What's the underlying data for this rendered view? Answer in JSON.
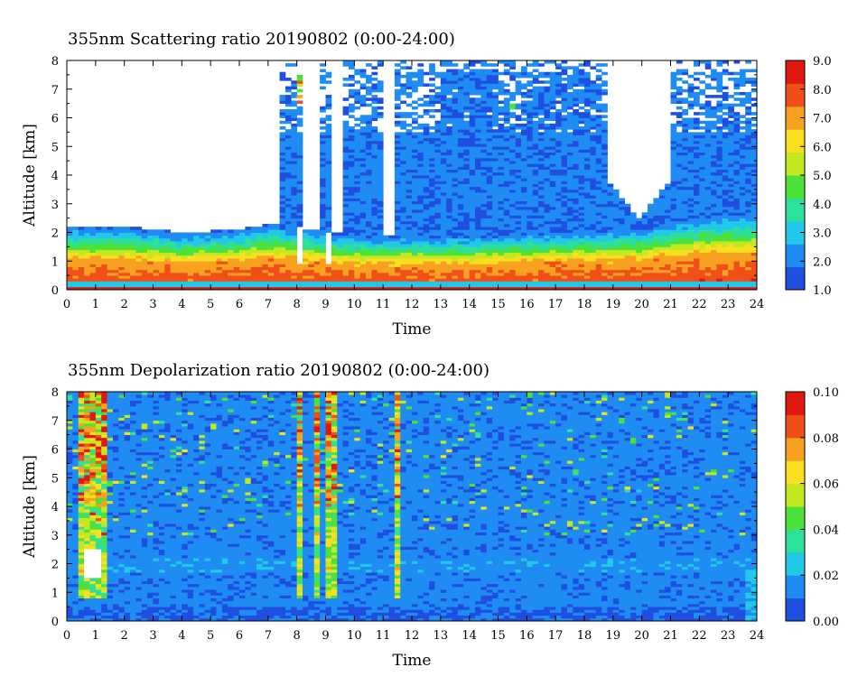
{
  "chart_data": [
    {
      "type": "heatmap",
      "title": "355nm Scattering ratio  20190802 (0:00-24:00)",
      "xlabel": "Time",
      "ylabel": "Altitude [km]",
      "xlim": [
        0,
        24
      ],
      "ylim": [
        0,
        8
      ],
      "x_ticks": [
        "0",
        "1",
        "2",
        "3",
        "4",
        "5",
        "6",
        "7",
        "8",
        "9",
        "10",
        "11",
        "12",
        "13",
        "14",
        "15",
        "16",
        "17",
        "18",
        "19",
        "20",
        "21",
        "22",
        "23",
        "24"
      ],
      "y_ticks": [
        "0",
        "1",
        "2",
        "3",
        "4",
        "5",
        "6",
        "7",
        "8"
      ],
      "colorbar": {
        "range": [
          1.0,
          9.0
        ],
        "ticks": [
          "1.0",
          "2.0",
          "3.0",
          "4.0",
          "5.0",
          "6.0",
          "7.0",
          "8.0",
          "9.0"
        ],
        "colors": [
          "#1f4fe0",
          "#1e8cf2",
          "#22c8e8",
          "#2ee09a",
          "#4ce23a",
          "#c4e820",
          "#f8e020",
          "#f8a020",
          "#f05018",
          "#e01810"
        ]
      },
      "features": {
        "aerosol_layer_top_km": [
          [
            0,
            2.2
          ],
          [
            2,
            2.2
          ],
          [
            4,
            2.0
          ],
          [
            6,
            2.1
          ],
          [
            7,
            2.3
          ],
          [
            10,
            1.9
          ],
          [
            14,
            1.9
          ],
          [
            20,
            2.2
          ],
          [
            22,
            2.6
          ],
          [
            24,
            2.7
          ]
        ],
        "no_data_above_layer_hours": [
          0,
          7.3
        ],
        "cirrus_base_km": [
          [
            7.4,
            4.5
          ],
          [
            8,
            1.2
          ],
          [
            9,
            1.2
          ],
          [
            10,
            3.5
          ],
          [
            12,
            2.8
          ],
          [
            14,
            2.5
          ],
          [
            16,
            3.0
          ],
          [
            18,
            3.0
          ],
          [
            19,
            2.5
          ],
          [
            20,
            2.6
          ],
          [
            22,
            3.5
          ],
          [
            24,
            4.0
          ]
        ]
      }
    },
    {
      "type": "heatmap",
      "title": "355nm Depolarization ratio  20190802 (0:00-24:00)",
      "xlabel": "Time",
      "ylabel": "Altitude [km]",
      "xlim": [
        0,
        24
      ],
      "ylim": [
        0,
        8
      ],
      "x_ticks": [
        "0",
        "1",
        "2",
        "3",
        "4",
        "5",
        "6",
        "7",
        "8",
        "9",
        "10",
        "11",
        "12",
        "13",
        "14",
        "15",
        "16",
        "17",
        "18",
        "19",
        "20",
        "21",
        "22",
        "23",
        "24"
      ],
      "y_ticks": [
        "0",
        "1",
        "2",
        "3",
        "4",
        "5",
        "6",
        "7",
        "8"
      ],
      "colorbar": {
        "range": [
          0.0,
          0.1
        ],
        "ticks": [
          "0.00",
          "0.02",
          "0.04",
          "0.06",
          "0.08",
          "0.10"
        ],
        "colors": [
          "#1f4fe0",
          "#1e8cf2",
          "#22c8e8",
          "#2ee09a",
          "#4ce23a",
          "#c4e820",
          "#f8e020",
          "#f8a020",
          "#f05018",
          "#e01810"
        ]
      },
      "features": {
        "background_level": 0.012,
        "high_depol_columns_hours": [
          [
            0.5,
            1.3
          ],
          [
            8.0,
            8.2
          ],
          [
            8.6,
            8.8
          ],
          [
            9.1,
            9.3
          ],
          [
            11.4,
            11.6
          ]
        ]
      }
    }
  ]
}
